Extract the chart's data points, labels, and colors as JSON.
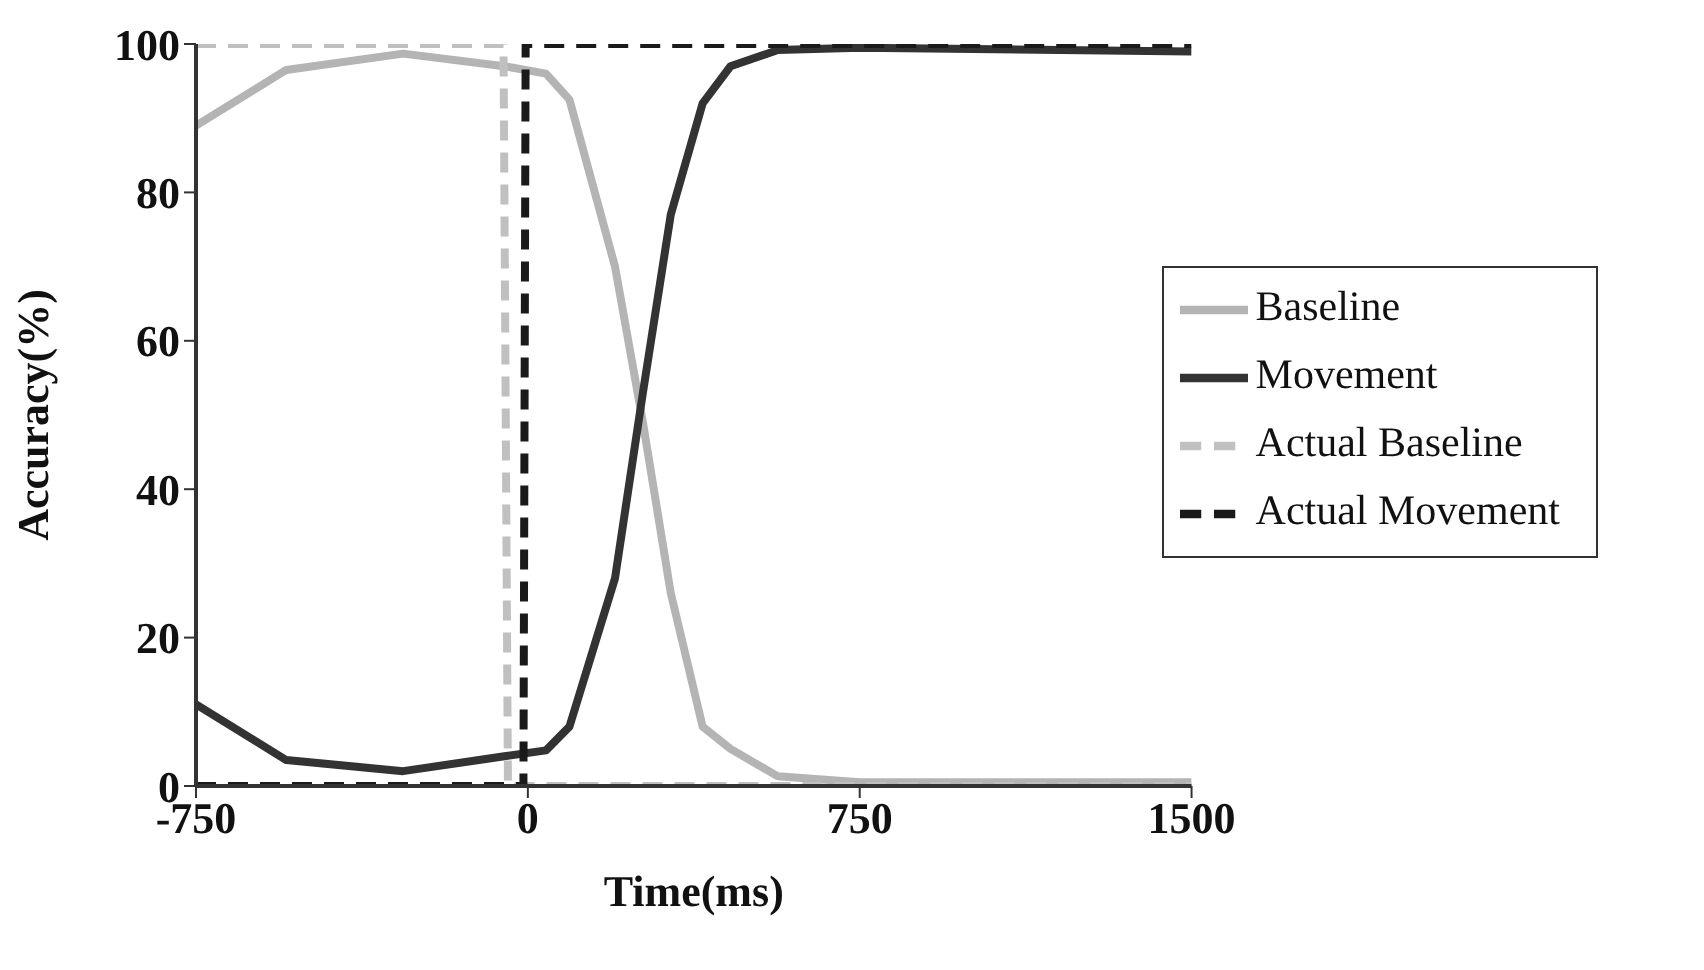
{
  "chart_data": {
    "type": "line",
    "xlabel": "Time(ms)",
    "ylabel": "Accuracy(%)",
    "xlim": [
      -750,
      1500
    ],
    "ylim": [
      0,
      100
    ],
    "xticks": [
      -750,
      0,
      750,
      1500
    ],
    "yticks": [
      0,
      20,
      40,
      60,
      80,
      100
    ],
    "grid": false,
    "legend": "right",
    "marker": "none",
    "series": [
      {
        "name": "Baseline",
        "color": "#b4b4b4",
        "line_style": "solid",
        "x": [
          -750,
          -546,
          -282,
          -53,
          41,
          94,
          197,
          260,
          323,
          395,
          458,
          565,
          750,
          1500
        ],
        "values": [
          89,
          96.5,
          98.7,
          97,
          96,
          92.5,
          70,
          49,
          26,
          8,
          5,
          1.3,
          0.5,
          0.5
        ]
      },
      {
        "name": "Movement",
        "color": "#333333",
        "line_style": "solid",
        "x": [
          -750,
          -546,
          -282,
          -53,
          41,
          94,
          197,
          260,
          323,
          395,
          458,
          565,
          750,
          1500
        ],
        "values": [
          11,
          3.5,
          2,
          4,
          4.8,
          8,
          28,
          53,
          77,
          92,
          97,
          99.2,
          99.5,
          99
        ]
      },
      {
        "name": "Actual Baseline",
        "color": "#c0c0c0",
        "line_style": "dashed",
        "x": [
          -750,
          -55,
          -45,
          1500
        ],
        "values": [
          100,
          100,
          0,
          0
        ]
      },
      {
        "name": "Actual Movement",
        "color": "#1a1a1a",
        "line_style": "dashed",
        "x": [
          -750,
          -10,
          -5,
          1500
        ],
        "values": [
          0,
          0,
          100,
          100
        ]
      }
    ]
  }
}
